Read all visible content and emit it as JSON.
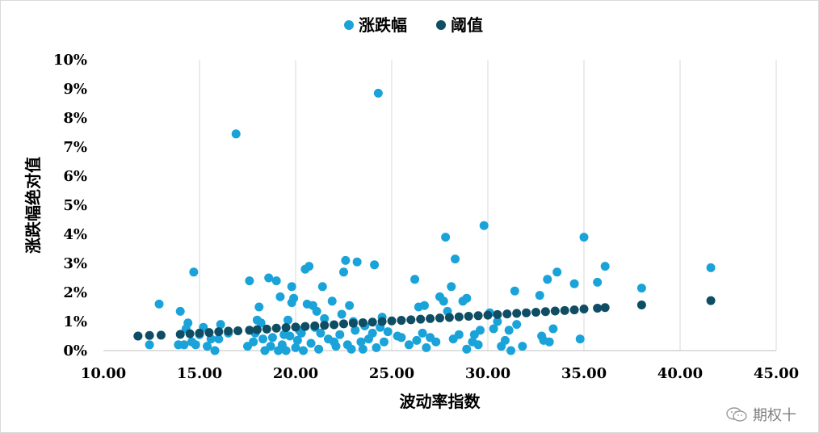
{
  "chart_data": {
    "type": "scatter",
    "xlabel": "波动率指数",
    "ylabel": "涨跌幅绝对值",
    "xlim": [
      10,
      45
    ],
    "ylim": [
      0,
      10
    ],
    "x_ticks": [
      "10.00",
      "15.00",
      "20.00",
      "25.00",
      "30.00",
      "35.00",
      "40.00",
      "45.00"
    ],
    "y_ticks": [
      "0%",
      "1%",
      "2%",
      "3%",
      "4%",
      "5%",
      "6%",
      "7%",
      "8%",
      "9%",
      "10%"
    ],
    "grid": "vertical",
    "legend_position": "top-center",
    "colors": {
      "change": "#1aa3d9",
      "threshold": "#0e4d64"
    },
    "series": [
      {
        "name": "涨跌幅",
        "points": [
          [
            11.8,
            0.5
          ],
          [
            12.4,
            0.2
          ],
          [
            12.9,
            1.6
          ],
          [
            13.9,
            0.2
          ],
          [
            14.0,
            1.35
          ],
          [
            14.2,
            0.2
          ],
          [
            14.3,
            0.75
          ],
          [
            14.4,
            0.95
          ],
          [
            14.6,
            0.3
          ],
          [
            14.7,
            2.7
          ],
          [
            14.8,
            0.2
          ],
          [
            15.0,
            0.55
          ],
          [
            15.2,
            0.8
          ],
          [
            15.4,
            0.15
          ],
          [
            15.6,
            0.4
          ],
          [
            15.8,
            0.0
          ],
          [
            16.0,
            0.4
          ],
          [
            16.1,
            0.9
          ],
          [
            16.5,
            0.6
          ],
          [
            16.9,
            7.45
          ],
          [
            17.5,
            0.15
          ],
          [
            17.6,
            2.4
          ],
          [
            17.8,
            0.3
          ],
          [
            17.9,
            0.6
          ],
          [
            18.0,
            1.05
          ],
          [
            18.1,
            1.5
          ],
          [
            18.2,
            0.95
          ],
          [
            18.3,
            0.4
          ],
          [
            18.4,
            0.0
          ],
          [
            18.6,
            2.5
          ],
          [
            18.7,
            0.15
          ],
          [
            18.8,
            0.45
          ],
          [
            19.0,
            2.4
          ],
          [
            19.1,
            0.0
          ],
          [
            19.2,
            1.85
          ],
          [
            19.3,
            0.2
          ],
          [
            19.4,
            0.55
          ],
          [
            19.5,
            0.0
          ],
          [
            19.6,
            1.05
          ],
          [
            19.7,
            0.5
          ],
          [
            19.8,
            1.65
          ],
          [
            19.8,
            2.2
          ],
          [
            19.9,
            1.8
          ],
          [
            20.0,
            0.1
          ],
          [
            20.1,
            0.35
          ],
          [
            20.2,
            0.7
          ],
          [
            20.3,
            0.6
          ],
          [
            20.4,
            0.0
          ],
          [
            20.5,
            2.8
          ],
          [
            20.6,
            1.6
          ],
          [
            20.7,
            2.9
          ],
          [
            20.8,
            0.25
          ],
          [
            20.9,
            1.55
          ],
          [
            21.0,
            0.8
          ],
          [
            21.1,
            1.35
          ],
          [
            21.2,
            0.05
          ],
          [
            21.3,
            0.6
          ],
          [
            21.4,
            2.2
          ],
          [
            21.5,
            1.1
          ],
          [
            21.7,
            0.4
          ],
          [
            21.9,
            1.7
          ],
          [
            22.0,
            0.3
          ],
          [
            22.1,
            0.15
          ],
          [
            22.3,
            0.55
          ],
          [
            22.4,
            1.25
          ],
          [
            22.5,
            2.7
          ],
          [
            22.6,
            3.1
          ],
          [
            22.7,
            0.2
          ],
          [
            22.8,
            1.55
          ],
          [
            22.9,
            0.05
          ],
          [
            23.0,
            1.0
          ],
          [
            23.1,
            0.7
          ],
          [
            23.2,
            3.05
          ],
          [
            23.4,
            0.3
          ],
          [
            23.5,
            0.05
          ],
          [
            23.6,
            0.85
          ],
          [
            23.8,
            0.4
          ],
          [
            24.0,
            0.6
          ],
          [
            24.1,
            2.95
          ],
          [
            24.2,
            0.1
          ],
          [
            24.3,
            8.85
          ],
          [
            24.4,
            0.8
          ],
          [
            24.5,
            1.15
          ],
          [
            24.6,
            0.3
          ],
          [
            24.8,
            0.65
          ],
          [
            25.3,
            0.5
          ],
          [
            25.5,
            0.45
          ],
          [
            25.9,
            0.2
          ],
          [
            26.2,
            2.45
          ],
          [
            26.3,
            0.35
          ],
          [
            26.4,
            1.5
          ],
          [
            26.6,
            0.6
          ],
          [
            26.7,
            1.55
          ],
          [
            26.8,
            0.1
          ],
          [
            27.0,
            0.45
          ],
          [
            27.3,
            0.3
          ],
          [
            27.5,
            1.85
          ],
          [
            27.7,
            1.7
          ],
          [
            27.8,
            3.9
          ],
          [
            27.9,
            1.35
          ],
          [
            28.1,
            2.2
          ],
          [
            28.2,
            0.4
          ],
          [
            28.3,
            3.15
          ],
          [
            28.5,
            0.55
          ],
          [
            28.7,
            1.7
          ],
          [
            28.9,
            0.05
          ],
          [
            28.9,
            1.8
          ],
          [
            29.2,
            0.3
          ],
          [
            29.3,
            0.55
          ],
          [
            29.5,
            0.2
          ],
          [
            29.6,
            0.7
          ],
          [
            29.8,
            4.3
          ],
          [
            30.1,
            1.3
          ],
          [
            30.3,
            0.75
          ],
          [
            30.5,
            1.0
          ],
          [
            30.7,
            0.15
          ],
          [
            30.9,
            0.35
          ],
          [
            31.1,
            0.7
          ],
          [
            31.2,
            0.0
          ],
          [
            31.4,
            2.05
          ],
          [
            31.5,
            0.9
          ],
          [
            31.8,
            0.15
          ],
          [
            32.7,
            1.9
          ],
          [
            32.8,
            0.5
          ],
          [
            32.9,
            0.35
          ],
          [
            33.1,
            2.45
          ],
          [
            33.2,
            0.3
          ],
          [
            33.4,
            0.75
          ],
          [
            33.6,
            2.7
          ],
          [
            34.5,
            2.3
          ],
          [
            34.8,
            0.4
          ],
          [
            35.0,
            3.9
          ],
          [
            35.7,
            2.35
          ],
          [
            36.1,
            2.9
          ],
          [
            38.0,
            2.15
          ],
          [
            41.6,
            2.85
          ]
        ]
      },
      {
        "name": "阈值",
        "points": [
          [
            11.8,
            0.5
          ],
          [
            12.4,
            0.52
          ],
          [
            13.0,
            0.53
          ],
          [
            14.0,
            0.56
          ],
          [
            14.5,
            0.58
          ],
          [
            15.0,
            0.6
          ],
          [
            15.5,
            0.62
          ],
          [
            16.0,
            0.65
          ],
          [
            16.5,
            0.67
          ],
          [
            17.0,
            0.68
          ],
          [
            17.6,
            0.7
          ],
          [
            18.0,
            0.72
          ],
          [
            18.5,
            0.74
          ],
          [
            19.0,
            0.77
          ],
          [
            19.5,
            0.79
          ],
          [
            20.0,
            0.81
          ],
          [
            20.5,
            0.83
          ],
          [
            21.0,
            0.85
          ],
          [
            21.5,
            0.87
          ],
          [
            22.0,
            0.89
          ],
          [
            22.5,
            0.92
          ],
          [
            23.0,
            0.94
          ],
          [
            23.5,
            0.96
          ],
          [
            24.0,
            0.98
          ],
          [
            24.5,
            1.0
          ],
          [
            25.0,
            1.02
          ],
          [
            25.5,
            1.04
          ],
          [
            26.0,
            1.06
          ],
          [
            26.5,
            1.08
          ],
          [
            27.0,
            1.1
          ],
          [
            27.5,
            1.12
          ],
          [
            28.0,
            1.14
          ],
          [
            28.5,
            1.16
          ],
          [
            29.0,
            1.18
          ],
          [
            29.5,
            1.2
          ],
          [
            30.0,
            1.22
          ],
          [
            30.5,
            1.24
          ],
          [
            31.0,
            1.26
          ],
          [
            31.5,
            1.28
          ],
          [
            32.0,
            1.3
          ],
          [
            32.5,
            1.32
          ],
          [
            33.0,
            1.34
          ],
          [
            33.5,
            1.36
          ],
          [
            34.0,
            1.38
          ],
          [
            34.5,
            1.4
          ],
          [
            35.0,
            1.43
          ],
          [
            35.7,
            1.46
          ],
          [
            36.1,
            1.48
          ],
          [
            38.0,
            1.57
          ],
          [
            41.6,
            1.72
          ]
        ]
      }
    ]
  },
  "watermark": {
    "text": "期权十"
  }
}
